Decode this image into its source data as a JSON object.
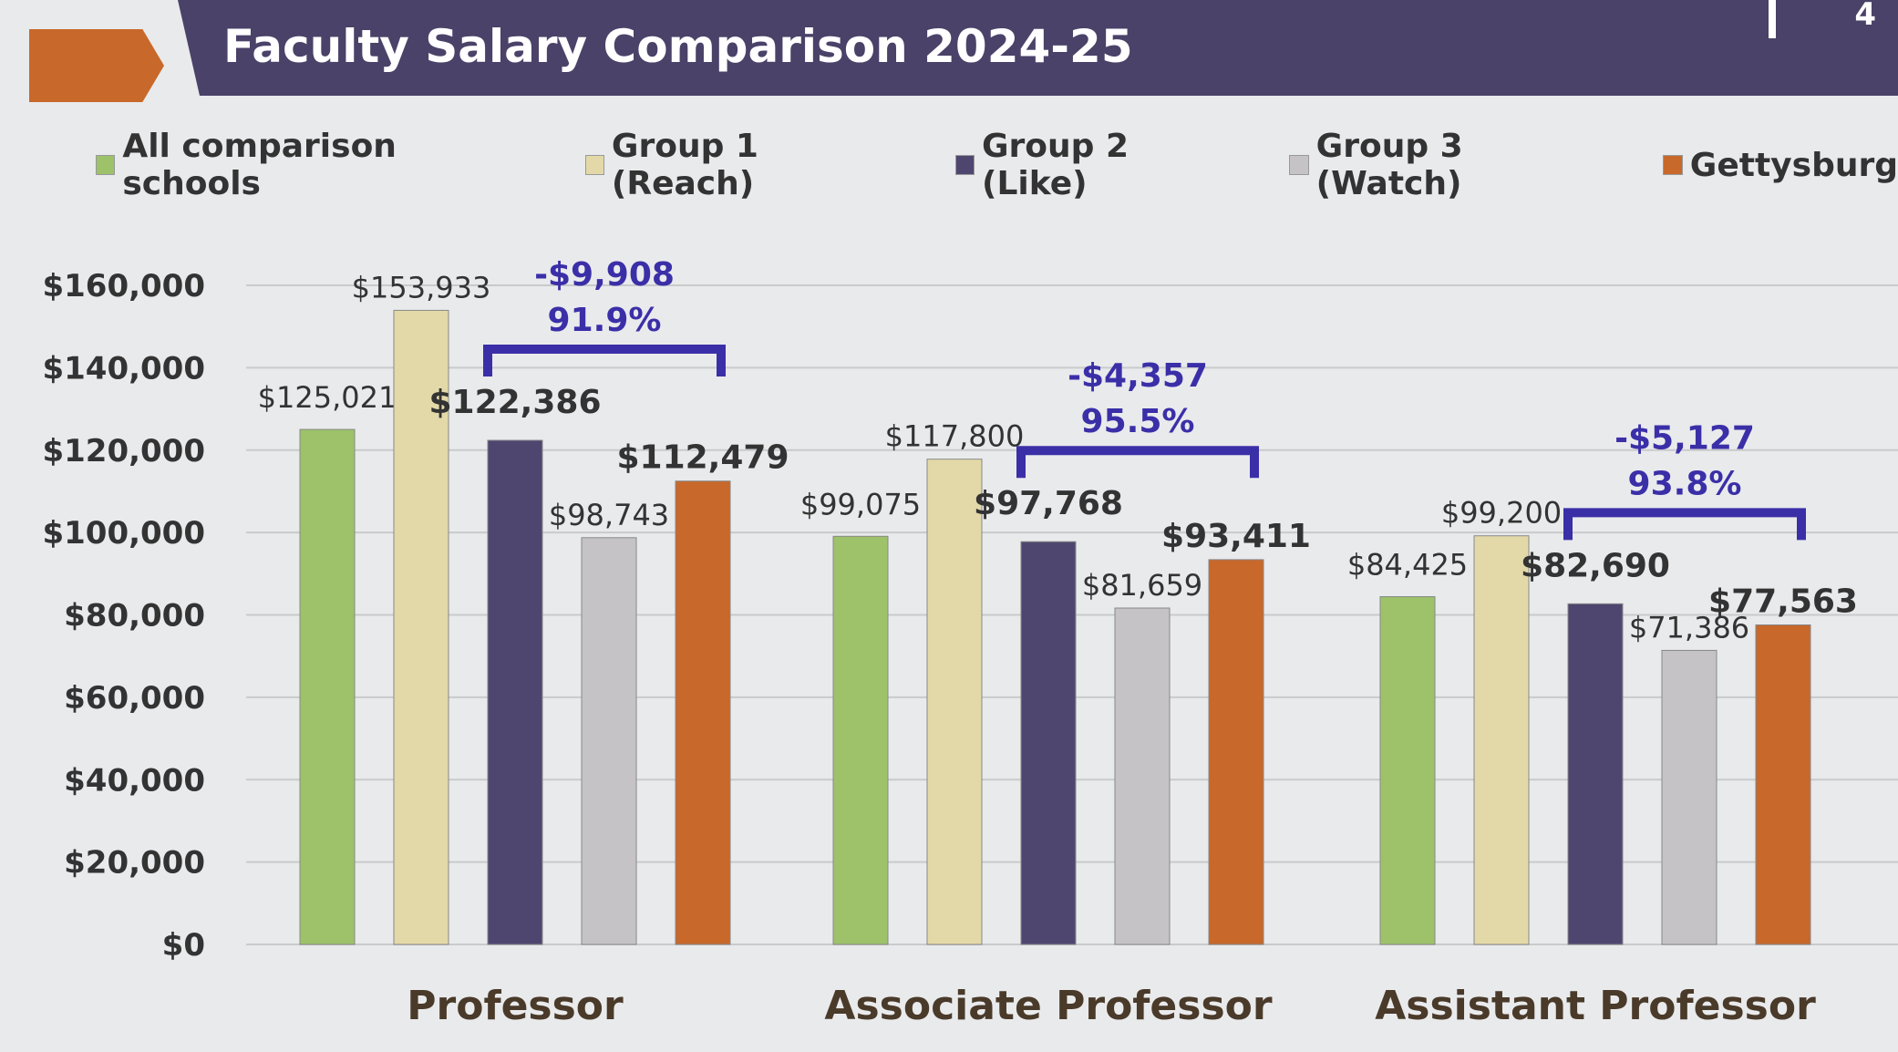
{
  "header": {
    "title": "Faculty Salary Comparison 2024-25",
    "page_number": "4"
  },
  "chart_data": {
    "type": "bar",
    "title": "Faculty Salary Comparison 2024-25",
    "xlabel": "",
    "ylabel": "",
    "ylim": [
      0,
      160000
    ],
    "yticks": [
      0,
      20000,
      40000,
      60000,
      80000,
      100000,
      120000,
      140000,
      160000
    ],
    "ytick_labels": [
      "$0",
      "$20,000",
      "$40,000",
      "$60,000",
      "$80,000",
      "$100,000",
      "$120,000",
      "$140,000",
      "$160,000"
    ],
    "grid": true,
    "legend_position": "top",
    "categories": [
      "Professor",
      "Associate Professor",
      "Assistant Professor"
    ],
    "series": [
      {
        "name": "All comparison schools",
        "color": "#9dc26a",
        "values": [
          125021,
          99075,
          84425
        ],
        "labels": [
          "$125,021",
          "$99,075",
          "$84,425"
        ],
        "bold": false
      },
      {
        "name": "Group 1 (Reach)",
        "color": "#e3d9a8",
        "values": [
          153933,
          117800,
          99200
        ],
        "labels": [
          "$153,933",
          "$117,800",
          "$99,200"
        ],
        "bold": false
      },
      {
        "name": "Group 2 (Like)",
        "color": "#4f4670",
        "values": [
          122386,
          97768,
          82690
        ],
        "labels": [
          "$122,386",
          "$97,768",
          "$82,690"
        ],
        "bold": true
      },
      {
        "name": "Group 3 (Watch)",
        "color": "#c5c3c6",
        "values": [
          98743,
          81659,
          71386
        ],
        "labels": [
          "$98,743",
          "$81,659",
          "$71,386"
        ],
        "bold": false
      },
      {
        "name": "Gettysburg",
        "color": "#c8682a",
        "values": [
          112479,
          93411,
          77563
        ],
        "labels": [
          "$112,479",
          "$93,411",
          "$77,563"
        ],
        "bold": true
      }
    ],
    "annotations": [
      {
        "category": "Professor",
        "difference": "-$9,908",
        "percent": "91.9%"
      },
      {
        "category": "Associate Professor",
        "difference": "-$4,357",
        "percent": "95.5%"
      },
      {
        "category": "Assistant Professor",
        "difference": "-$5,127",
        "percent": "93.8%"
      }
    ]
  }
}
